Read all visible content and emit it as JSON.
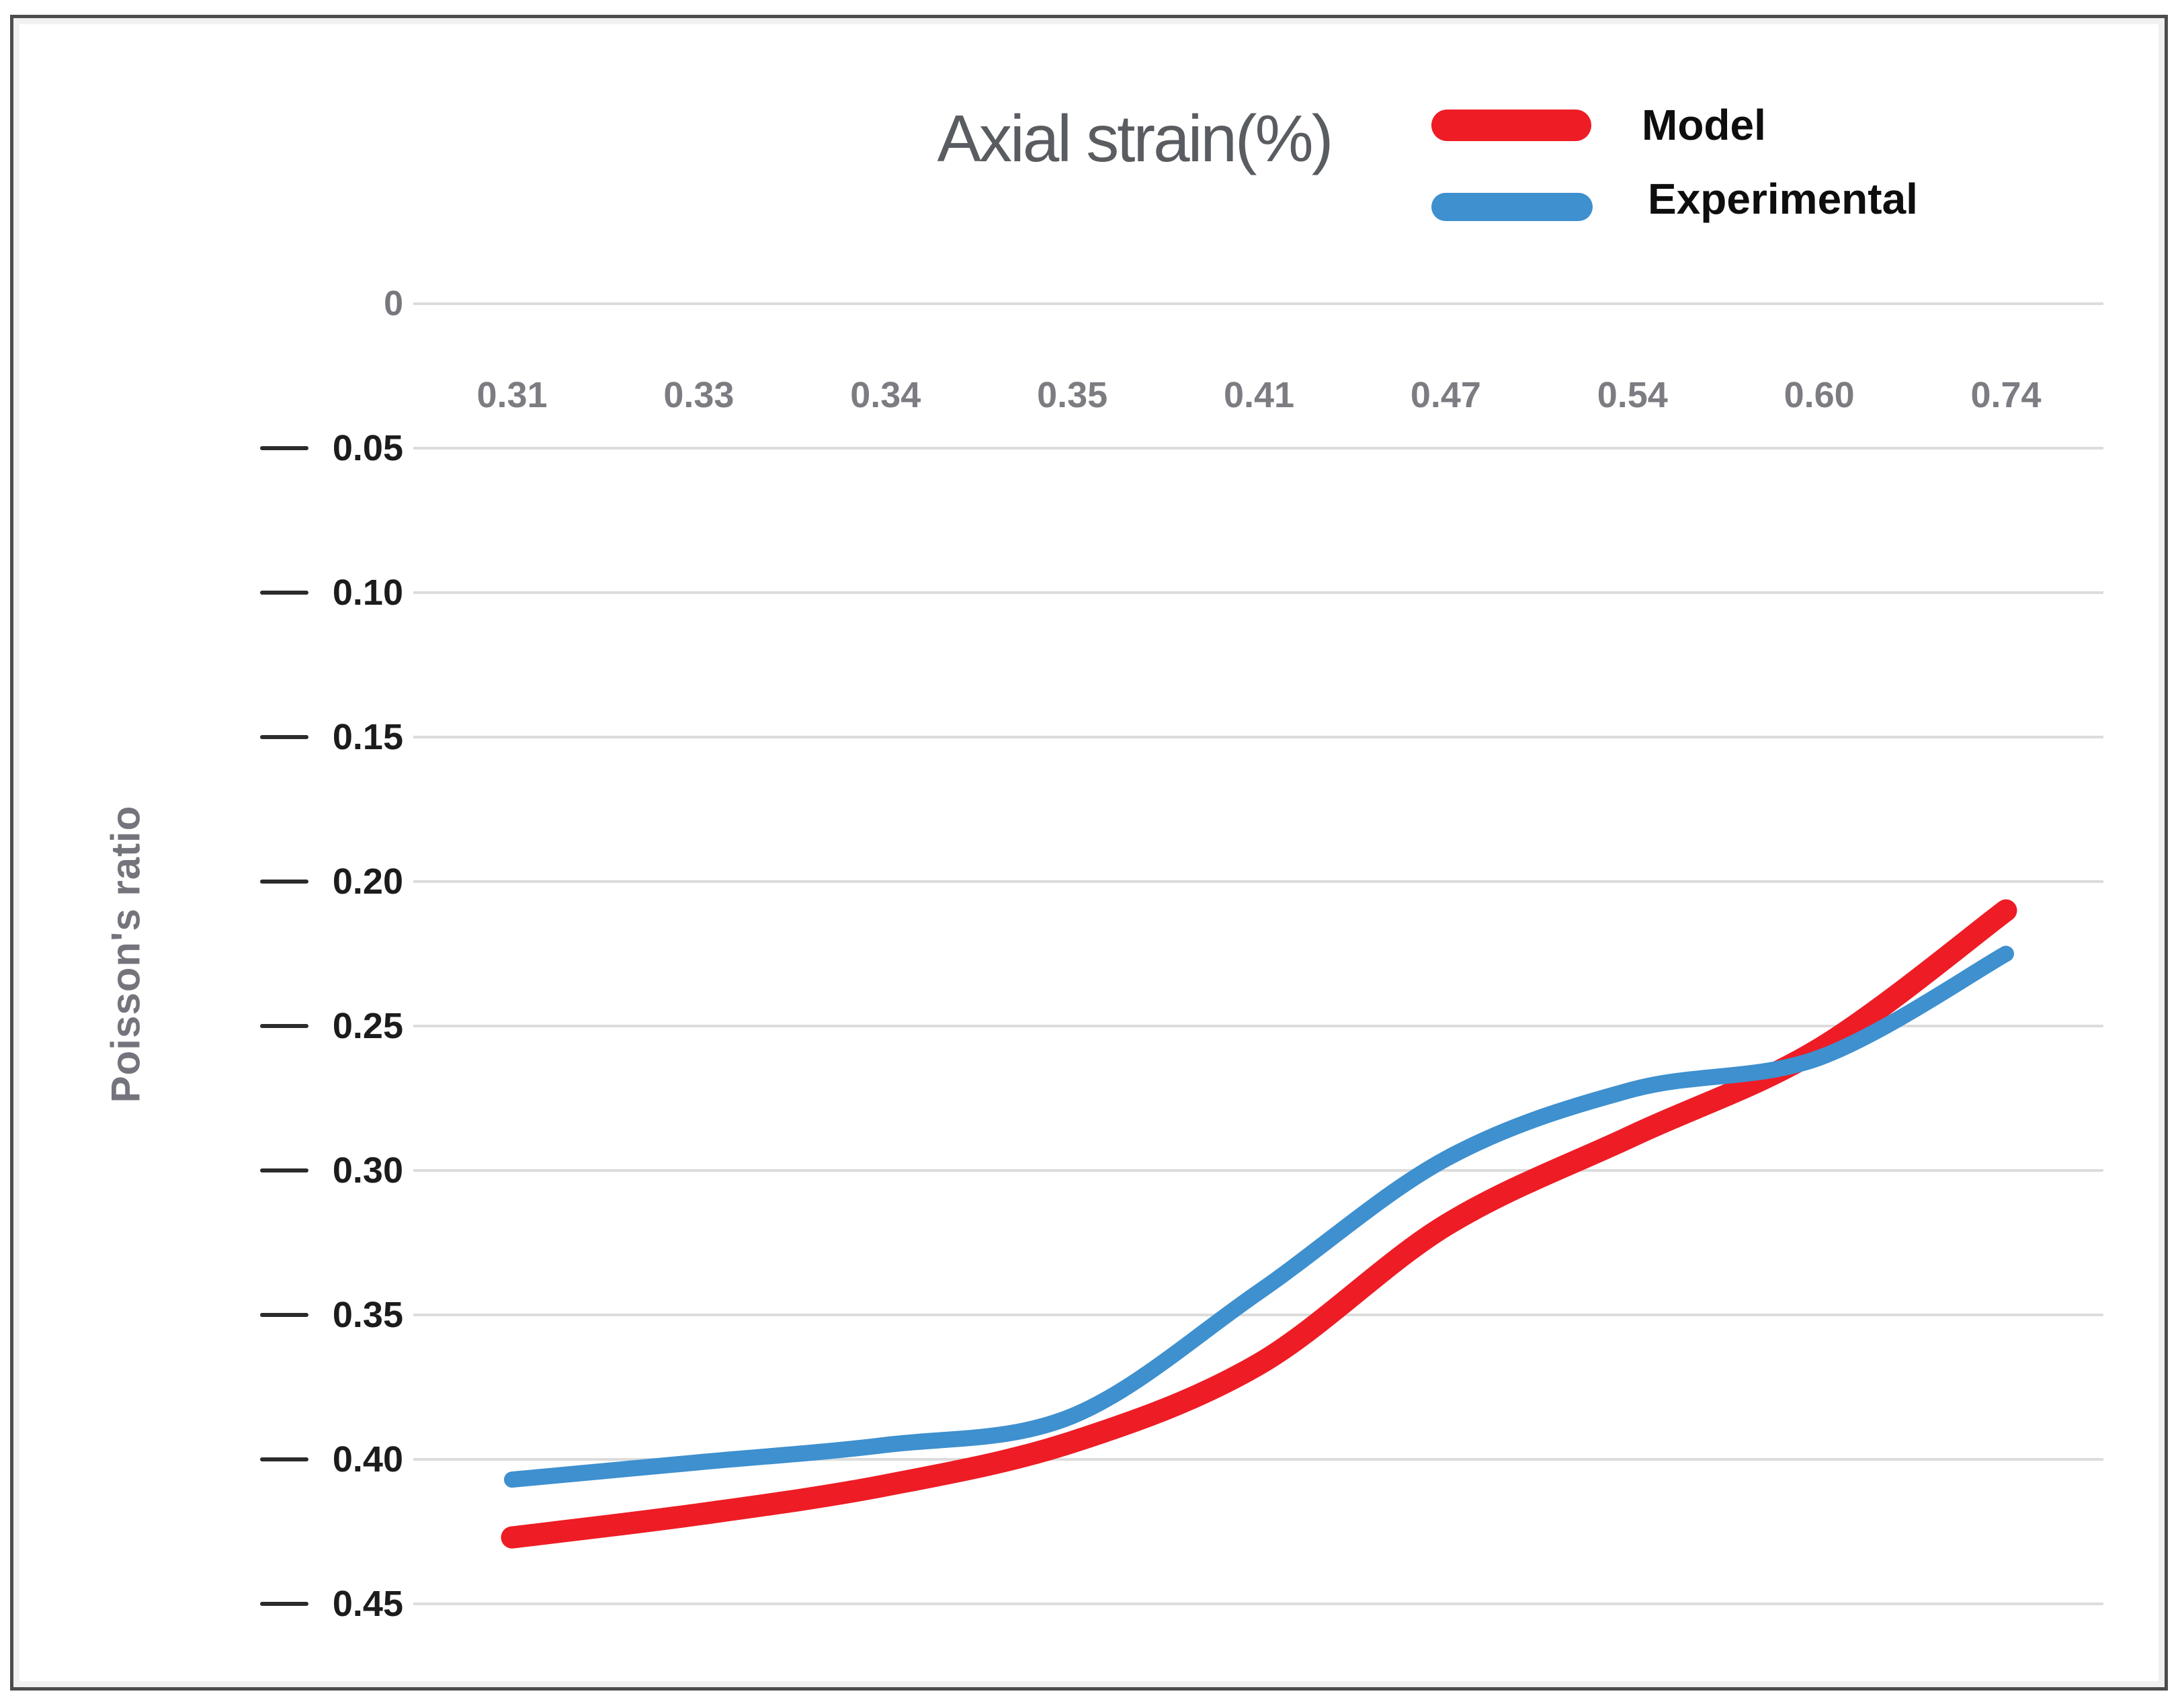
{
  "figure": {
    "title": "Axial strain(%)",
    "y_axis_label": "Poisson's ratio"
  },
  "chart_data": {
    "type": "line",
    "title": "Axial strain(%)",
    "xlabel": "Axial strain(%)",
    "ylabel": "Poisson's ratio",
    "categories": [
      "0.31",
      "0.33",
      "0.34",
      "0.35",
      "0.41",
      "0.47",
      "0.54",
      "0.60",
      "0.74"
    ],
    "series": [
      {
        "name": "Model",
        "color": "#ee1c25",
        "values": [
          -0.427,
          -0.419,
          -0.409,
          -0.394,
          -0.367,
          -0.319,
          -0.288,
          -0.258,
          -0.21
        ]
      },
      {
        "name": "Experimental",
        "color": "#3e90cf",
        "values": [
          -0.407,
          -0.401,
          -0.395,
          -0.385,
          -0.342,
          -0.296,
          -0.272,
          -0.261,
          -0.225
        ]
      }
    ],
    "ylim": [
      -0.45,
      0
    ],
    "y_tick_step": 0.05,
    "y_tick_labels": [
      "0",
      "0.05",
      "0.10",
      "0.15",
      "0.20",
      "0.25",
      "0.30",
      "0.35",
      "0.40",
      "0.45"
    ],
    "grid": true,
    "legend_position": "top-right",
    "gridline_color": "#dcdcdc"
  }
}
